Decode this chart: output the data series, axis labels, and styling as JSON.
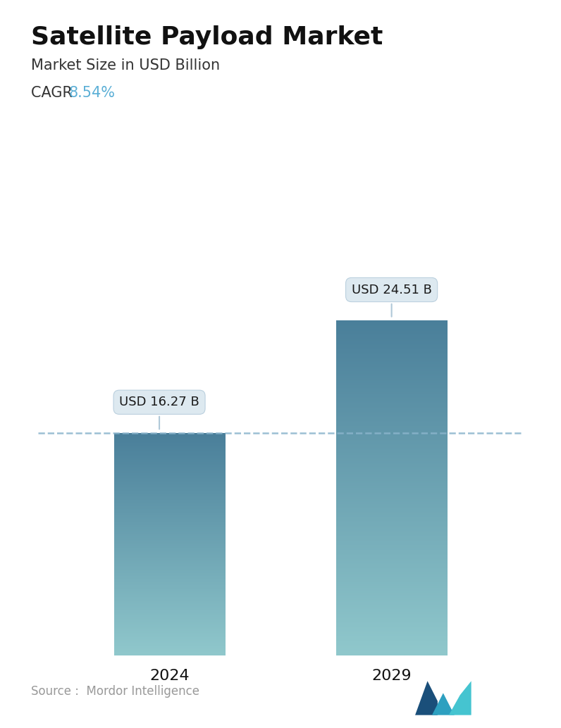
{
  "title": "Satellite Payload Market",
  "subtitle": "Market Size in USD Billion",
  "cagr_label": "CAGR ",
  "cagr_value": "8.54%",
  "cagr_color": "#5bafd6",
  "categories": [
    "2024",
    "2029"
  ],
  "values": [
    16.27,
    24.51
  ],
  "bar_labels": [
    "USD 16.27 B",
    "USD 24.51 B"
  ],
  "bar_color_top": "#4a7f9a",
  "bar_color_bottom": "#90c8cc",
  "dashed_line_color": "#8ab4cc",
  "background_color": "#ffffff",
  "source_text": "Source :  Mordor Intelligence",
  "title_fontsize": 26,
  "subtitle_fontsize": 15,
  "cagr_fontsize": 15,
  "xlabel_fontsize": 16,
  "annotation_fontsize": 13,
  "source_fontsize": 12,
  "ylim": [
    0,
    32
  ],
  "bar_positions": [
    0.28,
    0.72
  ],
  "bar_width": 0.22
}
